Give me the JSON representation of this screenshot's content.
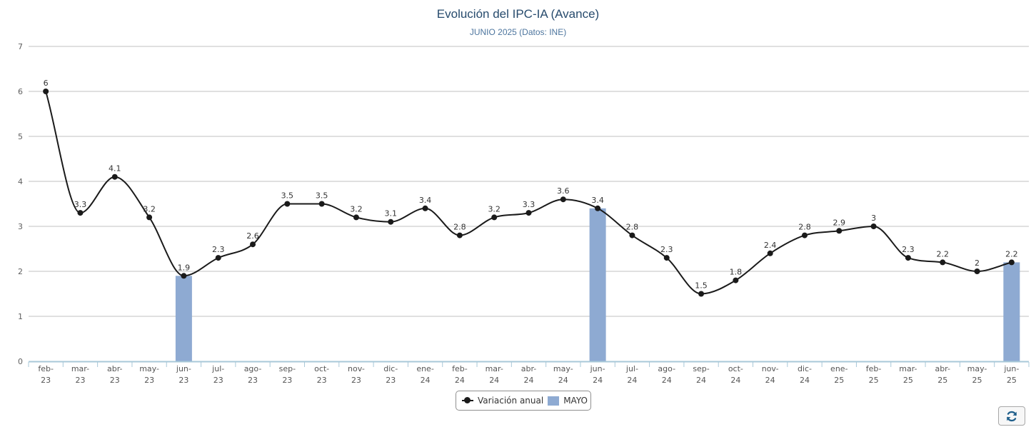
{
  "colors": {
    "line": "#1a1a1a",
    "bar": "#8eaad2",
    "grid": "#c0c0c0",
    "axis": "#a8c8d8",
    "title": "#274b6d",
    "subtitle": "#4d759e"
  },
  "legend": {
    "line_label": "Variación anual",
    "bar_label": "MAYO"
  },
  "refresh": {
    "icon": "refresh-icon"
  },
  "chart_data": {
    "type": "line",
    "title": "Evolución del IPC-IA (Avance)",
    "subtitle": "JUNIO 2025 (Datos: INE)",
    "xlabel": "",
    "ylabel": "",
    "ylim": [
      0,
      7
    ],
    "yticks": [
      0,
      1,
      2,
      3,
      4,
      5,
      6,
      7
    ],
    "grid": true,
    "legend_position": "bottom-center",
    "categories": [
      [
        "feb-",
        "23"
      ],
      [
        "mar-",
        "23"
      ],
      [
        "abr-",
        "23"
      ],
      [
        "may-",
        "23"
      ],
      [
        "jun-",
        "23"
      ],
      [
        "jul-",
        "23"
      ],
      [
        "ago-",
        "23"
      ],
      [
        "sep-",
        "23"
      ],
      [
        "oct-",
        "23"
      ],
      [
        "nov-",
        "23"
      ],
      [
        "dic-",
        "23"
      ],
      [
        "ene-",
        "24"
      ],
      [
        "feb-",
        "24"
      ],
      [
        "mar-",
        "24"
      ],
      [
        "abr-",
        "24"
      ],
      [
        "may-",
        "24"
      ],
      [
        "jun-",
        "24"
      ],
      [
        "jul-",
        "24"
      ],
      [
        "ago-",
        "24"
      ],
      [
        "sep-",
        "24"
      ],
      [
        "oct-",
        "24"
      ],
      [
        "nov-",
        "24"
      ],
      [
        "dic-",
        "24"
      ],
      [
        "ene-",
        "25"
      ],
      [
        "feb-",
        "25"
      ],
      [
        "mar-",
        "25"
      ],
      [
        "abr-",
        "25"
      ],
      [
        "may-",
        "25"
      ],
      [
        "jun-",
        "25"
      ]
    ],
    "series": [
      {
        "name": "Variación anual",
        "type": "line",
        "values": [
          6,
          3.3,
          4.1,
          3.2,
          1.9,
          2.3,
          2.6,
          3.5,
          3.5,
          3.2,
          3.1,
          3.4,
          2.8,
          3.2,
          3.3,
          3.6,
          3.4,
          2.8,
          2.3,
          1.5,
          1.8,
          2.4,
          2.8,
          2.9,
          3,
          2.3,
          2.2,
          2,
          2.2
        ],
        "labels": [
          "6",
          "3.3",
          "4.1",
          "3.2",
          "1.9",
          "2.3",
          "2.6",
          "3.5",
          "3.5",
          "3.2",
          "3.1",
          "3.4",
          "2.8",
          "3.2",
          "3.3",
          "3.6",
          "3.4",
          "2.8",
          "2.3",
          "1.5",
          "1.8",
          "2.4",
          "2.8",
          "2.9",
          "3",
          "2.3",
          "2.2",
          "2",
          "2.2"
        ]
      },
      {
        "name": "MAYO",
        "type": "bar",
        "values": [
          null,
          null,
          null,
          null,
          1.9,
          null,
          null,
          null,
          null,
          null,
          null,
          null,
          null,
          null,
          null,
          null,
          3.4,
          null,
          null,
          null,
          null,
          null,
          null,
          null,
          null,
          null,
          null,
          null,
          2.2
        ]
      }
    ]
  }
}
